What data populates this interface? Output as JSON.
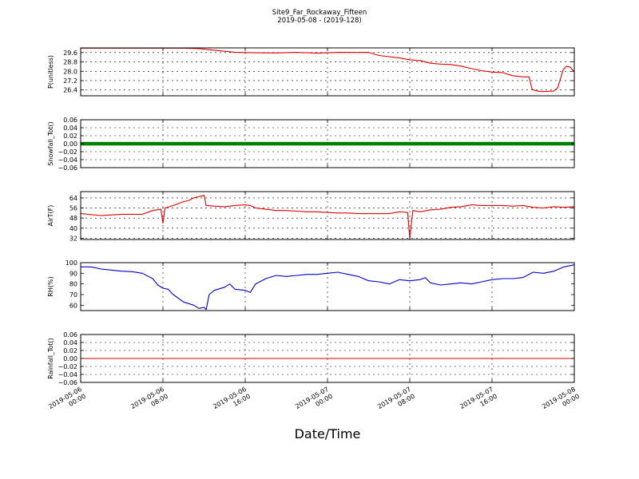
{
  "figure": {
    "title": "Site9_Far_Rockaway_Fifteen",
    "subtitle": "2019-05-08 - (2019-128)",
    "xlabel": "Date/Time",
    "x_ticks": [
      {
        "value": 0,
        "line1": "2019-05-06",
        "line2": "00:00"
      },
      {
        "value": 8,
        "line1": "2019-05-06",
        "line2": "08:00"
      },
      {
        "value": 16,
        "line1": "2019-05-06",
        "line2": "16:00"
      },
      {
        "value": 24,
        "line1": "2019-05-07",
        "line2": "00:00"
      },
      {
        "value": 32,
        "line1": "2019-05-07",
        "line2": "08:00"
      },
      {
        "value": 40,
        "line1": "2019-05-07",
        "line2": "16:00"
      },
      {
        "value": 48,
        "line1": "2019-05-08",
        "line2": "00:00"
      }
    ],
    "x_range": [
      0,
      48
    ]
  },
  "chart_data": [
    {
      "type": "line",
      "ylabel": "P(unitless)",
      "ylim": [
        25.9,
        30.0
      ],
      "yticks": [
        26.4,
        27.2,
        28.0,
        28.8,
        29.6
      ],
      "ytick_labels": [
        "26.4",
        "27.2",
        "28.0",
        "28.8",
        "29.6"
      ],
      "grid": true,
      "color": "#e00000",
      "series": [
        {
          "x": [
            0,
            6,
            10,
            11.5,
            13,
            15,
            17,
            19,
            21,
            23,
            25,
            27,
            28,
            29,
            31,
            32,
            33,
            34,
            35,
            36,
            37,
            38,
            39,
            40,
            41,
            42,
            43,
            43.6,
            43.9,
            44.2,
            44.6,
            45,
            46,
            46.4,
            46.9,
            47.2,
            47.6,
            48
          ],
          "y": [
            29.98,
            29.98,
            29.98,
            29.93,
            29.8,
            29.63,
            29.58,
            29.57,
            29.62,
            29.55,
            29.62,
            29.61,
            29.62,
            29.35,
            29.14,
            28.98,
            28.92,
            28.69,
            28.61,
            28.58,
            28.44,
            28.22,
            28.05,
            27.93,
            27.89,
            27.62,
            27.52,
            27.52,
            26.45,
            26.36,
            26.28,
            26.26,
            26.3,
            26.62,
            28.08,
            28.42,
            28.35,
            27.95
          ]
        }
      ]
    },
    {
      "type": "line",
      "ylabel": "Snowfall_Tot()",
      "ylim": [
        -0.06,
        0.06
      ],
      "yticks": [
        -0.06,
        -0.04,
        -0.02,
        0.0,
        0.02,
        0.04,
        0.06
      ],
      "ytick_labels": [
        "−0.06",
        "−0.04",
        "−0.02",
        "0.00",
        "0.02",
        "0.04",
        "0.06"
      ],
      "grid": true,
      "color": "#008000",
      "linewidth": 4.5,
      "series": [
        {
          "x": [
            0,
            48
          ],
          "y": [
            0,
            0
          ]
        }
      ]
    },
    {
      "type": "line",
      "ylabel": "AirT(F)",
      "ylim": [
        31,
        69
      ],
      "yticks": [
        32,
        40,
        48,
        56,
        64
      ],
      "ytick_labels": [
        "32",
        "40",
        "48",
        "56",
        "64"
      ],
      "grid": true,
      "color": "#e00000",
      "series": [
        {
          "x": [
            0,
            2,
            4,
            6,
            7,
            7.8,
            8,
            8.2,
            9,
            10,
            10.5,
            11,
            11.5,
            12,
            12.2,
            13,
            14,
            15,
            16,
            16.5,
            17,
            18,
            19,
            20,
            21,
            22,
            23,
            24,
            25,
            26,
            27,
            28,
            29,
            30,
            31,
            31.8,
            32,
            32.3,
            33,
            34,
            35,
            36,
            37,
            38,
            39,
            40,
            41,
            42,
            43,
            44,
            45,
            46,
            47,
            48
          ],
          "y": [
            51.5,
            50,
            51,
            51,
            54,
            55,
            44,
            56,
            58,
            61,
            62,
            64,
            65,
            66,
            58,
            57.5,
            57,
            58,
            58.5,
            58,
            56,
            55,
            54,
            54,
            53.5,
            53,
            53,
            52.5,
            52,
            52,
            51.5,
            51.5,
            51.5,
            51.5,
            53,
            52.5,
            32,
            54,
            53,
            54.5,
            55,
            56.5,
            57,
            58.5,
            58,
            58,
            58,
            57.5,
            58,
            56.5,
            56,
            57,
            56.5,
            57
          ]
        }
      ]
    },
    {
      "type": "line",
      "ylabel": "RH(%)",
      "ylim": [
        55,
        100
      ],
      "yticks": [
        60,
        70,
        80,
        90,
        100
      ],
      "ytick_labels": [
        "60",
        "70",
        "80",
        "90",
        "100"
      ],
      "grid": false,
      "color": "#0000cc",
      "series": [
        {
          "x": [
            0,
            1,
            2,
            3,
            4,
            5,
            6,
            7,
            7.5,
            8,
            8.5,
            9,
            10,
            11,
            11.5,
            12,
            12.2,
            12.5,
            13,
            14,
            14.5,
            15,
            16,
            16.5,
            17,
            18,
            19,
            20,
            21,
            22,
            23,
            24,
            25,
            26,
            27,
            28,
            29,
            30,
            31,
            32,
            33,
            33.5,
            34,
            35,
            36,
            37,
            38,
            39,
            40,
            41,
            42,
            43,
            44,
            45,
            46,
            47,
            48
          ],
          "y": [
            96,
            96,
            94,
            93,
            92,
            91.5,
            90,
            85,
            79,
            76,
            75,
            70,
            63,
            60,
            57,
            58,
            56,
            70,
            74,
            77,
            80,
            75,
            74,
            72,
            80,
            85,
            88,
            87,
            88,
            89,
            89,
            90,
            91,
            89,
            87,
            83,
            82,
            80,
            84,
            83,
            84,
            86,
            81,
            79,
            80,
            81,
            80,
            82,
            84,
            85,
            85,
            86,
            91,
            90,
            92,
            96,
            98
          ]
        }
      ]
    },
    {
      "type": "line",
      "ylabel": "Rainfall_Tot()",
      "ylim": [
        -0.06,
        0.06
      ],
      "yticks": [
        -0.06,
        -0.04,
        -0.02,
        0.0,
        0.02,
        0.04,
        0.06
      ],
      "ytick_labels": [
        "−0.06",
        "−0.04",
        "−0.02",
        "0.00",
        "0.02",
        "0.04",
        "0.06"
      ],
      "grid": true,
      "color": "#e00000",
      "linewidth": 1,
      "series": [
        {
          "x": [
            0,
            48
          ],
          "y": [
            0,
            0
          ]
        }
      ]
    }
  ]
}
